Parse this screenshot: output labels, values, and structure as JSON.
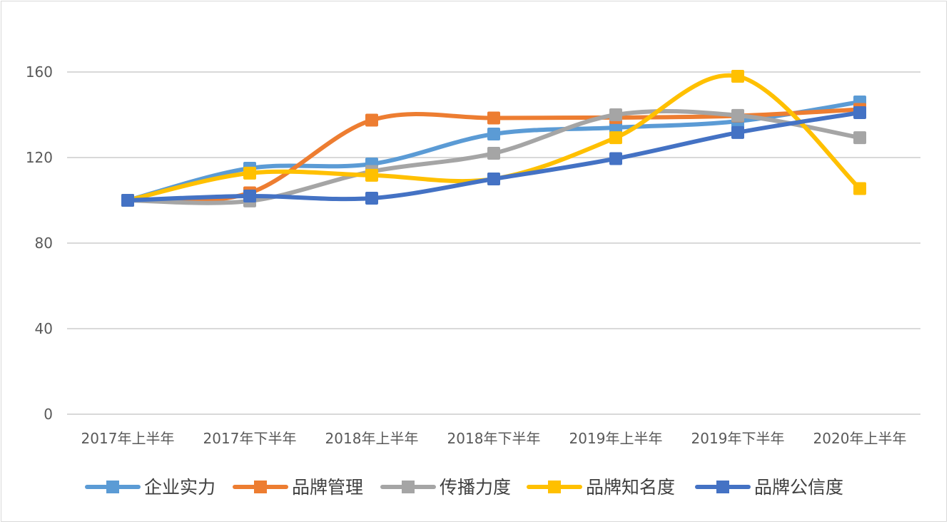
{
  "chart_data": {
    "type": "line",
    "smooth": true,
    "title": "",
    "xlabel": "",
    "ylabel": "",
    "ylim": [
      0,
      160
    ],
    "yticks": [
      0,
      40,
      80,
      120,
      160
    ],
    "grid": true,
    "legend_position": "bottom",
    "categories": [
      "2017年上半年",
      "2017年下半年",
      "2018年上半年",
      "2018年下半年",
      "2019年上半年",
      "2019年下半年",
      "2020年上半年"
    ],
    "series": [
      {
        "name": "企业实力",
        "color": "#5b9bd5",
        "values": [
          100,
          115,
          117,
          131,
          134,
          137,
          146
        ]
      },
      {
        "name": "品牌管理",
        "color": "#ed7d31",
        "values": [
          100,
          103.5,
          137.5,
          138.5,
          138.7,
          139.5,
          142.5
        ]
      },
      {
        "name": "传播力度",
        "color": "#a5a5a5",
        "values": [
          100,
          99.7,
          113.5,
          122,
          140,
          139.7,
          129.3
        ]
      },
      {
        "name": "品牌知名度",
        "color": "#ffc000",
        "values": [
          100,
          112.7,
          111.7,
          110,
          129.3,
          158,
          105.5
        ]
      },
      {
        "name": "品牌公信度",
        "color": "#4472c4",
        "values": [
          100,
          102,
          101,
          110,
          119.5,
          131.7,
          141
        ]
      }
    ]
  }
}
